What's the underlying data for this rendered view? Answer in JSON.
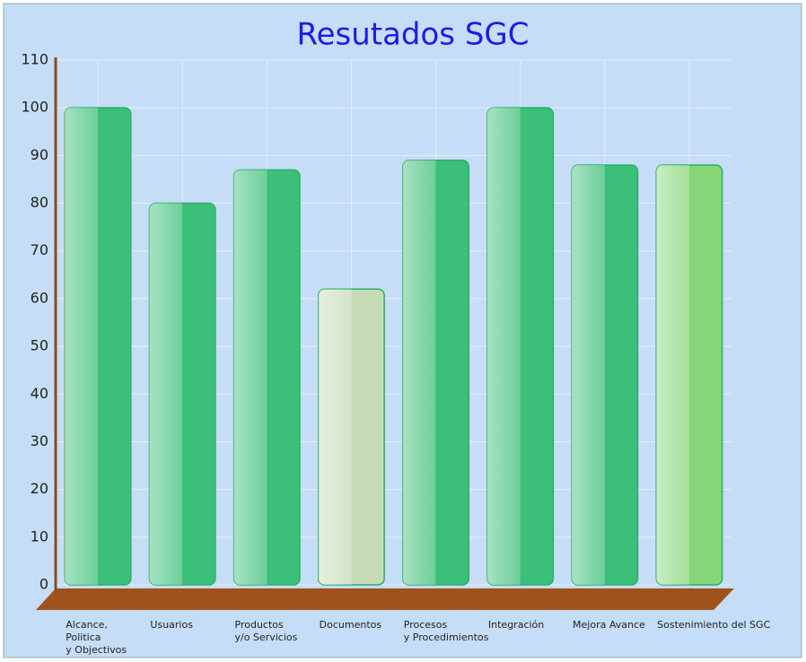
{
  "chart_data": {
    "type": "bar",
    "title": "Resutados SGC",
    "categories": [
      "Alcance,\nPolitica\ny Objectivos",
      "Usuarios",
      "Productos\ny/o Servicios",
      "Documentos",
      "Procesos\ny Procedimientos",
      "Integración",
      "Mejora Avance",
      "Sostenimiento del SGC"
    ],
    "values": [
      100,
      80,
      87,
      62,
      89,
      100,
      88,
      88
    ],
    "colors": [
      "#3cbf78",
      "#3cbf78",
      "#3cbf78",
      "#c6dbb6",
      "#3cbf78",
      "#3cbf78",
      "#3cbf78",
      "#86d677"
    ],
    "ylim": [
      0,
      110
    ],
    "yticks": [
      0,
      10,
      20,
      30,
      40,
      50,
      60,
      70,
      80,
      90,
      100,
      110
    ],
    "grid": true
  }
}
